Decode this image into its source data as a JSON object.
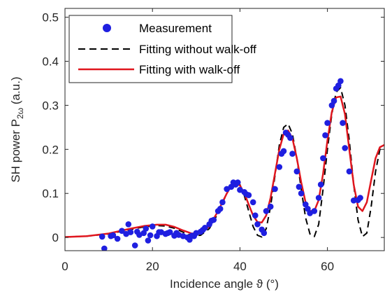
{
  "chart_data": {
    "type": "line",
    "xlabel": "Incidence angle ϑ (°)",
    "ylabel_prefix": "SH power P",
    "ylabel_subscript": "2ω",
    "ylabel_suffix": " (a.u.)",
    "xlim": [
      0,
      73
    ],
    "ylim": [
      -0.03,
      0.52
    ],
    "xticks": [
      0,
      20,
      40,
      60
    ],
    "yticks": [
      0,
      0.1,
      0.2,
      0.3,
      0.4,
      0.5
    ],
    "ytick_labels": [
      "0",
      "0.1",
      "0.2",
      "0.3",
      "0.4",
      "0.5"
    ],
    "grid": false,
    "legend_position": "top-left",
    "series": [
      {
        "name": "Measurement",
        "kind": "scatter",
        "color": "#1f1fe0",
        "x": [
          8.5,
          9,
          10.5,
          11,
          12,
          13,
          14,
          14.5,
          15,
          16,
          16.5,
          17,
          18,
          18.5,
          19,
          19.5,
          20,
          21,
          21.5,
          22,
          23,
          23.5,
          24,
          25,
          25.5,
          26,
          27,
          28,
          28.5,
          29,
          29.5,
          30,
          31,
          31.5,
          32,
          33,
          33.5,
          34,
          35,
          35.5,
          36,
          37,
          38,
          38.5,
          39,
          39.5,
          40,
          41,
          41.5,
          42,
          43,
          43.5,
          44,
          45,
          45.5,
          46,
          47,
          48,
          49,
          49.5,
          50,
          50.5,
          51,
          51.5,
          52,
          53,
          53.5,
          54,
          55,
          55.5,
          56,
          57,
          58,
          58.5,
          59,
          59.5,
          60,
          61,
          61.5,
          62,
          62.5,
          63,
          63.5,
          64,
          65,
          66,
          67,
          67.5
        ],
        "y": [
          0.002,
          -0.025,
          0.003,
          0.005,
          -0.003,
          0.015,
          0.008,
          0.03,
          0.012,
          -0.018,
          0.013,
          0.006,
          0.01,
          0.02,
          -0.007,
          0.005,
          0.025,
          0.003,
          0.012,
          0.012,
          0.008,
          0.01,
          0.012,
          0.004,
          0.01,
          0.006,
          0.003,
          0.0,
          -0.005,
          0.004,
          0.003,
          0.01,
          0.013,
          0.017,
          0.022,
          0.03,
          0.038,
          0.04,
          0.06,
          0.065,
          0.08,
          0.11,
          0.115,
          0.125,
          0.12,
          0.125,
          0.108,
          0.103,
          0.098,
          0.096,
          0.08,
          0.05,
          0.03,
          0.018,
          0.01,
          0.06,
          0.07,
          0.11,
          0.16,
          0.19,
          0.196,
          0.238,
          0.233,
          0.226,
          0.19,
          0.15,
          0.115,
          0.1,
          0.075,
          0.065,
          0.055,
          0.06,
          0.09,
          0.12,
          0.18,
          0.232,
          0.26,
          0.3,
          0.31,
          0.338,
          0.345,
          0.355,
          0.26,
          0.203,
          0.15,
          0.084,
          0.085,
          0.09
        ]
      },
      {
        "name": "Fitting without walk-off",
        "kind": "line",
        "color": "#000000",
        "dash": "dashed",
        "x": [
          0,
          5,
          10,
          15,
          18,
          21,
          23,
          25,
          27,
          29,
          31,
          33,
          35,
          37,
          38,
          39,
          40,
          41,
          42,
          43,
          44,
          45,
          46,
          47,
          48,
          49,
          50,
          51,
          52,
          53,
          54,
          55,
          56,
          57,
          58,
          59,
          60,
          61,
          62,
          63,
          64,
          65,
          66,
          67,
          68,
          69,
          70,
          71,
          72,
          73
        ],
        "y": [
          0.001,
          0.003,
          0.008,
          0.018,
          0.024,
          0.027,
          0.026,
          0.021,
          0.012,
          0.004,
          0.005,
          0.02,
          0.055,
          0.1,
          0.12,
          0.128,
          0.12,
          0.095,
          0.06,
          0.025,
          0.005,
          0.001,
          0.02,
          0.07,
          0.14,
          0.21,
          0.25,
          0.258,
          0.235,
          0.18,
          0.11,
          0.045,
          0.008,
          0.002,
          0.03,
          0.11,
          0.2,
          0.28,
          0.33,
          0.34,
          0.3,
          0.22,
          0.12,
          0.04,
          0.002,
          0.01,
          0.07,
          0.15,
          0.2,
          0.205
        ]
      },
      {
        "name": "Fitting with walk-off",
        "kind": "line",
        "color": "#e0161e",
        "dash": "solid",
        "x": [
          0,
          5,
          10,
          15,
          18,
          21,
          23,
          25,
          27,
          29,
          31,
          33,
          35,
          37,
          38,
          39,
          40,
          41,
          42,
          43,
          44,
          45,
          46,
          47,
          48,
          49,
          50,
          51,
          52,
          53,
          54,
          55,
          56,
          57,
          58,
          59,
          60,
          61,
          62,
          63,
          64,
          65,
          66,
          67,
          68,
          69,
          70,
          71,
          72,
          73
        ],
        "y": [
          0.001,
          0.003,
          0.009,
          0.02,
          0.026,
          0.029,
          0.029,
          0.024,
          0.016,
          0.009,
          0.01,
          0.025,
          0.06,
          0.1,
          0.117,
          0.123,
          0.118,
          0.1,
          0.075,
          0.05,
          0.035,
          0.034,
          0.05,
          0.09,
          0.145,
          0.2,
          0.235,
          0.243,
          0.225,
          0.18,
          0.125,
          0.08,
          0.06,
          0.06,
          0.085,
          0.145,
          0.22,
          0.285,
          0.318,
          0.32,
          0.28,
          0.2,
          0.12,
          0.07,
          0.06,
          0.08,
          0.13,
          0.18,
          0.205,
          0.21
        ]
      }
    ]
  }
}
